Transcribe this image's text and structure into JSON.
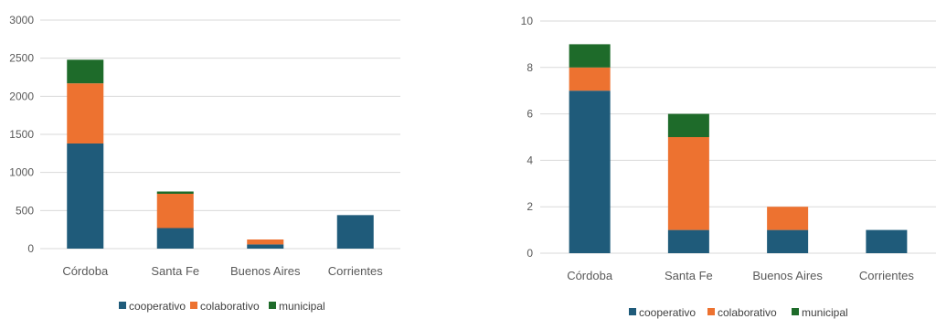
{
  "chart_data": [
    {
      "type": "bar",
      "stacked": true,
      "categories": [
        "Córdoba",
        "Santa Fe",
        "Buenos Aires",
        "Corrientes"
      ],
      "series": [
        {
          "name": "cooperativo",
          "color": "#1f5b7a",
          "values": [
            1380,
            270,
            55,
            440
          ]
        },
        {
          "name": "colaborativo",
          "color": "#ed7230",
          "values": [
            790,
            450,
            65,
            0
          ]
        },
        {
          "name": "municipal",
          "color": "#1e6b2a",
          "values": [
            310,
            30,
            0,
            0
          ]
        }
      ],
      "yticks": [
        "0",
        "500",
        "1000",
        "1500",
        "2000",
        "2500",
        "3000"
      ],
      "ylim": [
        0,
        3000
      ],
      "grid": true,
      "legend": "bottom"
    },
    {
      "type": "bar",
      "stacked": true,
      "categories": [
        "Córdoba",
        "Santa Fe",
        "Buenos Aires",
        "Corrientes"
      ],
      "series": [
        {
          "name": "cooperativo",
          "color": "#1f5b7a",
          "values": [
            7,
            1,
            1,
            1
          ]
        },
        {
          "name": "colaborativo",
          "color": "#ed7230",
          "values": [
            1,
            4,
            1,
            0
          ]
        },
        {
          "name": "municipal",
          "color": "#1e6b2a",
          "values": [
            1,
            1,
            0,
            0
          ]
        }
      ],
      "yticks": [
        "0",
        "2",
        "4",
        "6",
        "8",
        "10"
      ],
      "ylim": [
        0,
        10
      ],
      "grid": true,
      "legend": "bottom"
    }
  ]
}
